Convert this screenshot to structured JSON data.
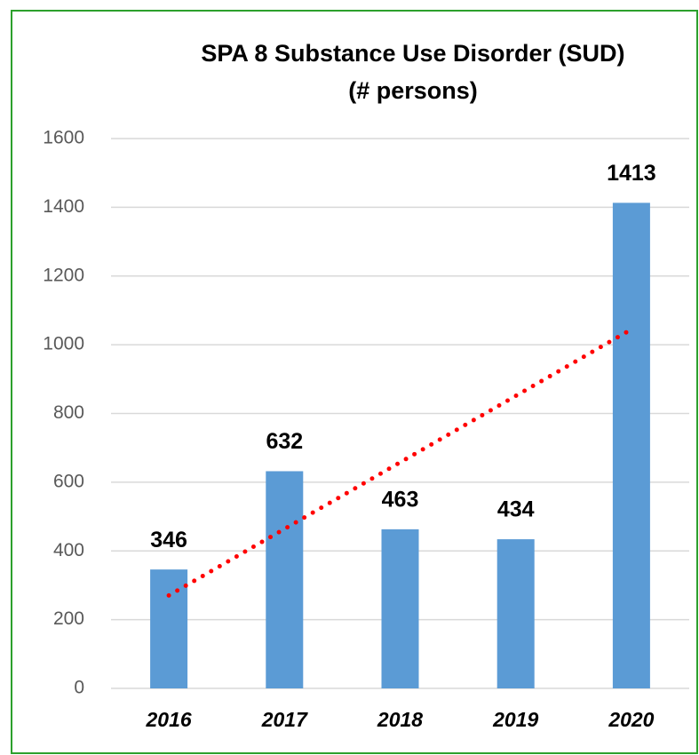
{
  "chart_data": {
    "type": "bar",
    "title": "SPA 8 Substance Use Disorder (SUD)",
    "subtitle": "(# persons)",
    "categories": [
      "2016",
      "2017",
      "2018",
      "2019",
      "2020"
    ],
    "values": [
      346,
      632,
      463,
      434,
      1413
    ],
    "color": "#5b9bd5",
    "ylim": [
      0,
      1600
    ],
    "yticks": [
      0,
      200,
      400,
      600,
      800,
      1000,
      1200,
      1400,
      1600
    ],
    "grid": true,
    "trendline": "linear",
    "trendline_color": "#ff0000"
  }
}
